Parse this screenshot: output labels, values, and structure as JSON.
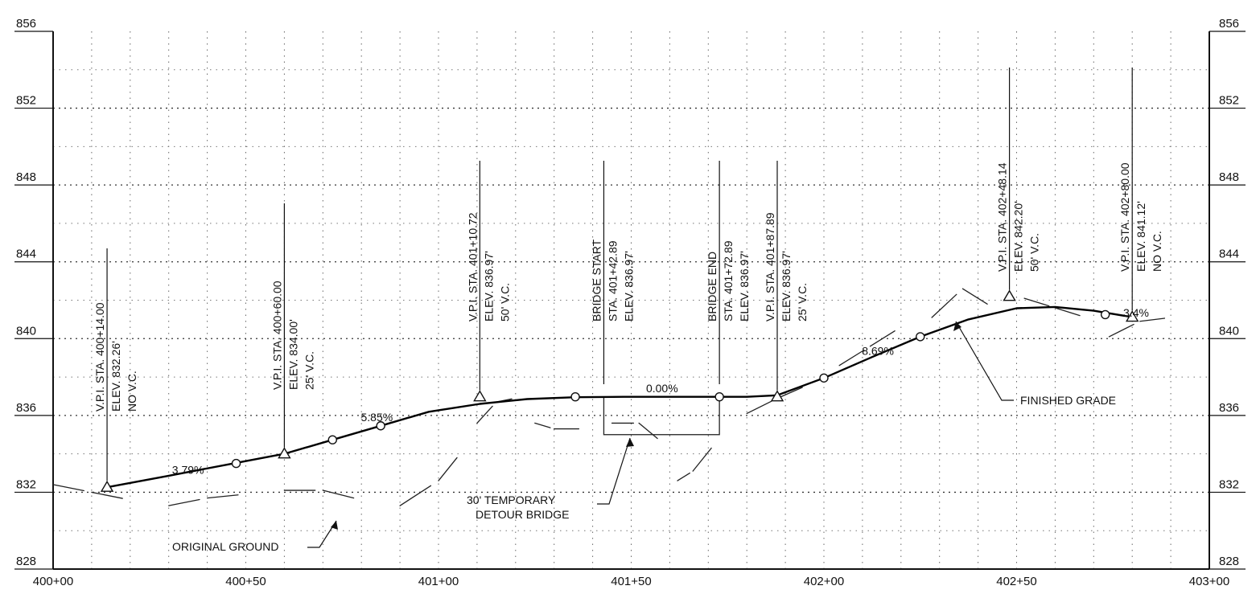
{
  "chart_data": {
    "type": "line",
    "title": "",
    "xlabel": "",
    "ylabel": "",
    "xlim": [
      40000,
      40300
    ],
    "ylim": [
      828,
      856
    ],
    "grid": true,
    "x_tick_labels": [
      "400+00",
      "400+50",
      "401+00",
      "401+50",
      "402+00",
      "402+50",
      "403+00"
    ],
    "y_tick_labels": [
      "856",
      "852",
      "848",
      "844",
      "840",
      "836",
      "832",
      "828"
    ],
    "series": [
      {
        "name": "FINISHED GRADE",
        "style": "solid-bold",
        "x": [
          40014,
          40030,
          40046,
          40060,
          40072.5,
          40085,
          40097.5,
          40110.72,
          40123,
          40135.5,
          40148,
          40160.5,
          40172.89,
          40180,
          40187.89,
          40200,
          40212.5,
          40225,
          40237.5,
          40250,
          40260,
          40270,
          40280
        ],
        "y": [
          832.26,
          832.86,
          833.47,
          834.0,
          834.73,
          835.46,
          836.19,
          836.6,
          836.85,
          836.95,
          836.97,
          836.97,
          836.97,
          836.97,
          837.05,
          837.95,
          839.04,
          840.1,
          841.0,
          841.58,
          841.65,
          841.45,
          841.12
        ]
      },
      {
        "name": "ORIGINAL GROUND",
        "style": "broken",
        "x": [
          40000,
          40010,
          40020,
          40030,
          40040,
          40050,
          40060,
          40070,
          40080,
          40090,
          40100,
          40106,
          40110,
          40115,
          40120,
          40125,
          40130,
          40138,
          40145,
          40152,
          40158,
          40162,
          40166,
          40172,
          40180,
          40188,
          40196,
          40204,
          40212,
          40220,
          40228,
          40236,
          40244,
          40252,
          40260,
          40268,
          40274,
          40282,
          40290
        ],
        "y": [
          832.4,
          832.0,
          831.6,
          831.3,
          831.7,
          831.9,
          832.1,
          832.1,
          831.6,
          831.3,
          832.6,
          834.1,
          835.6,
          836.7,
          836.9,
          835.6,
          835.3,
          835.3,
          835.6,
          835.6,
          834.6,
          832.6,
          833.1,
          834.6,
          836.1,
          836.9,
          837.6,
          838.6,
          839.6,
          840.6,
          841.1,
          842.6,
          841.6,
          842.1,
          841.6,
          841.1,
          840.1,
          840.9,
          841.1
        ]
      }
    ],
    "markers": {
      "vpi": [
        {
          "x": 40014,
          "y": 832.26
        },
        {
          "x": 40060,
          "y": 834.0
        },
        {
          "x": 40110.72,
          "y": 836.97
        },
        {
          "x": 40187.89,
          "y": 836.97
        },
        {
          "x": 40248.14,
          "y": 842.2
        },
        {
          "x": 40280,
          "y": 841.12
        }
      ],
      "pc_pt": [
        {
          "x": 40047.5,
          "y": 833.5
        },
        {
          "x": 40072.5,
          "y": 834.73
        },
        {
          "x": 40085,
          "y": 835.46
        },
        {
          "x": 40135.5,
          "y": 836.97
        },
        {
          "x": 40172.89,
          "y": 836.97
        },
        {
          "x": 40200,
          "y": 837.95
        },
        {
          "x": 40225,
          "y": 840.1
        },
        {
          "x": 40273,
          "y": 841.25
        }
      ]
    },
    "vertical_labels": [
      {
        "id": "vpi-400-14",
        "x": 40014,
        "lines": [
          "V.P.I.  STA.  400+14.00",
          "ELEV.  832.26'",
          "NO V.C."
        ]
      },
      {
        "id": "vpi-400-60",
        "x": 40060,
        "lines": [
          "V.P.I.  STA.  400+60.00",
          "ELEV.  834.00'",
          "25' V.C."
        ]
      },
      {
        "id": "vpi-401-10",
        "x": 40110.72,
        "lines": [
          "V.P.I.  STA.  401+10.72",
          "ELEV.  836.97'",
          "50' V.C."
        ]
      },
      {
        "id": "bridge-start",
        "x": 40142.89,
        "lines": [
          "BRIDGE  START",
          "STA.  401+42.89",
          "ELEV.  836.97'"
        ]
      },
      {
        "id": "bridge-end",
        "x": 40172.89,
        "lines": [
          "BRIDGE  END",
          "STA.  401+72.89",
          "ELEV.  836.97'"
        ]
      },
      {
        "id": "vpi-401-87",
        "x": 40187.89,
        "lines": [
          "V.P.I.  STA.  401+87.89",
          "ELEV.  836.97'",
          "25' V.C."
        ]
      },
      {
        "id": "vpi-402-48",
        "x": 40248.14,
        "lines": [
          "V.P.I.  STA.  402+48.14",
          "ELEV.  842.20'",
          "50' V.C."
        ]
      },
      {
        "id": "vpi-402-80",
        "x": 40280,
        "lines": [
          "V.P.I.  STA.  402+80.00",
          "ELEV.  841.12'",
          "NO V.C."
        ]
      }
    ],
    "grades": [
      {
        "text": "3.79%",
        "x": 40035,
        "y": 832.95
      },
      {
        "text": "5.85%",
        "x": 40084,
        "y": 835.7
      },
      {
        "text": "0.00%",
        "x": 40158,
        "y": 837.2
      },
      {
        "text": "8.69%",
        "x": 40214,
        "y": 839.15
      },
      {
        "text": "3.4%",
        "x": 40281,
        "y": 841.15
      }
    ],
    "bridge": {
      "x_start": 40142.89,
      "x_end": 40172.89,
      "top": 836.97,
      "bottom": 835.0
    },
    "callouts": {
      "finished_grade": "FINISHED GRADE",
      "original_ground": "ORIGINAL GROUND",
      "detour_bridge_line1": "30'  TEMPORARY",
      "detour_bridge_line2": "DETOUR  BRIDGE"
    }
  }
}
